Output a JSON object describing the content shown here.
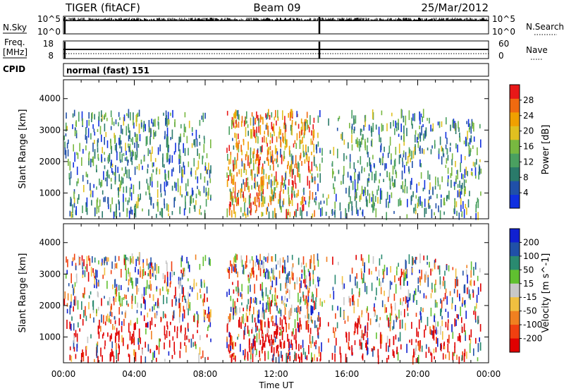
{
  "header": {
    "station": "TIGER (fitACF)",
    "beam": "Beam 09",
    "date": "25/Mar/2012"
  },
  "strips": {
    "nsky_label": "N.Sky",
    "nsearch_label": "N.Search",
    "nsky_ticks": [
      "10^5",
      "10^0"
    ],
    "nsearch_ticks": [
      "10^5",
      "10^0"
    ],
    "freq_label": "Freq.",
    "freq_unit": "[MHz]",
    "freq_ticks": [
      "18",
      "8"
    ],
    "nave_label": "Nave",
    "nave_ticks": [
      "60",
      "0"
    ],
    "cpid_label": "CPID",
    "cpid_value": "normal (fast) 151"
  },
  "colors": {
    "power": [
      "#1030e0",
      "#2050a8",
      "#2a7a6a",
      "#4aa060",
      "#78b840",
      "#e0c020",
      "#f0a000",
      "#f06a10",
      "#e81818"
    ],
    "velocity": [
      "#e00000",
      "#f04010",
      "#f08020",
      "#f0c040",
      "#c8c8c8",
      "#60c030",
      "#2a8a70",
      "#2050a8",
      "#1020d0"
    ]
  },
  "chart_data": [
    {
      "type": "heatmap",
      "parameter": "Power",
      "ylabel": "Slant Range [km]",
      "xlim": [
        "00:00",
        "24:00"
      ],
      "ylim": [
        180,
        4600
      ],
      "y_ticks": [
        1000,
        2000,
        3000,
        4000
      ],
      "x_ticks": [
        "00:00",
        "04:00",
        "08:00",
        "12:00",
        "16:00",
        "20:00",
        "00:00"
      ],
      "colorbar": {
        "label": "Power [dB]",
        "ticks": [
          "4",
          "8",
          "12",
          "16",
          "20",
          "24",
          "28"
        ],
        "range": [
          0,
          30
        ]
      },
      "data_gaps_hours": [
        [
          8.3,
          9.2
        ]
      ],
      "scatter_range_km": [
        250,
        3550
      ]
    },
    {
      "type": "heatmap",
      "parameter": "Velocity",
      "ylabel": "Slant Range [km]",
      "xlim": [
        "00:00",
        "24:00"
      ],
      "ylim": [
        180,
        4600
      ],
      "y_ticks": [
        1000,
        2000,
        3000,
        4000
      ],
      "x_ticks": [
        "00:00",
        "04:00",
        "08:00",
        "12:00",
        "16:00",
        "20:00",
        "00:00"
      ],
      "xlabel": "Time UT",
      "colorbar": {
        "label": "Velocity [m s^-1]",
        "ticks": [
          "-200",
          "-100",
          "-50",
          "-15",
          "15",
          "50",
          "100",
          "200"
        ],
        "range": [
          -250,
          250
        ]
      },
      "data_gaps_hours": [
        [
          8.3,
          9.2
        ]
      ],
      "scatter_range_km": [
        250,
        3550
      ]
    }
  ]
}
